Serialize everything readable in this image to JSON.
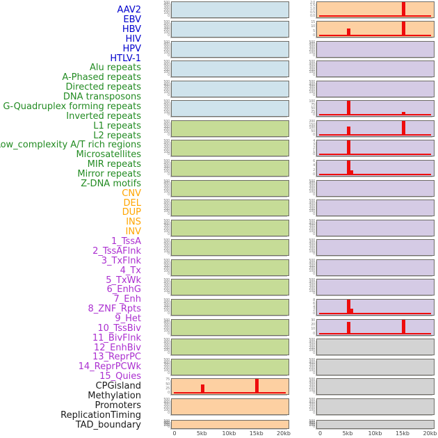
{
  "colors": {
    "background": "#ffffff",
    "spike_red": "#ee0c0c",
    "panel_border": "#6e6c66",
    "y_tick_text": "#818181",
    "x_tick_text": "#3f3f3f",
    "label": {
      "virus": "#0000cd",
      "repeat": "#228b22",
      "sv": "#ffa500",
      "chromhmm": "#ab2fd0",
      "other": "#1a1a1a"
    },
    "fill": {
      "virus": "#cfe3ec",
      "repeat": "#c6dc97",
      "sv": "#fdd0a2",
      "chromhmm": "#d5cbe5",
      "other": "#d3d3d3"
    }
  },
  "chart_data": {
    "type": "bar",
    "layout": "44 small-multiple density panels arranged as 2 columns x 22 rows; feature name list on the left (column-major: first 22 names = left column, last 22 = right column)",
    "x_axis": {
      "ticks": [
        "0",
        "5kb",
        "10kb",
        "15kb",
        "20kb"
      ],
      "range_kb": [
        0,
        20
      ],
      "shown_under_each_column": true
    },
    "default_y_ticks": [
      "500",
      "400",
      "300",
      "200",
      "100",
      "0"
    ],
    "panels": [
      {
        "name": "AAV2",
        "category": "virus",
        "spikes": []
      },
      {
        "name": "EBV",
        "category": "virus",
        "spikes": []
      },
      {
        "name": "HBV",
        "category": "virus",
        "spikes": []
      },
      {
        "name": "HIV",
        "category": "virus",
        "spikes": []
      },
      {
        "name": "HPV",
        "category": "virus",
        "spikes": []
      },
      {
        "name": "HTLV-1",
        "category": "virus",
        "spikes": []
      },
      {
        "name": "Alu repeats",
        "category": "repeat",
        "spikes": []
      },
      {
        "name": "A-Phased repeats",
        "category": "repeat",
        "spikes": []
      },
      {
        "name": "Directed repeats",
        "category": "repeat",
        "spikes": []
      },
      {
        "name": "DNA transposons",
        "category": "repeat",
        "spikes": []
      },
      {
        "name": "G-Quadruplex forming repeats",
        "category": "repeat",
        "spikes": []
      },
      {
        "name": "Inverted repeats",
        "category": "repeat",
        "spikes": []
      },
      {
        "name": "L1 repeats",
        "category": "repeat",
        "spikes": []
      },
      {
        "name": "L2 repeats",
        "category": "repeat",
        "spikes": []
      },
      {
        "name": "Low_complexity A/T rich regions",
        "category": "repeat",
        "spikes": []
      },
      {
        "name": "Microsatellites",
        "category": "repeat",
        "spikes": []
      },
      {
        "name": "MIR repeats",
        "category": "repeat",
        "spikes": []
      },
      {
        "name": "Mirror repeats",
        "category": "repeat",
        "spikes": []
      },
      {
        "name": "Z-DNA motifs",
        "category": "repeat",
        "spikes": []
      },
      {
        "name": "CNV",
        "category": "sv",
        "y_ticks": [
          "75",
          "50",
          "25",
          "0"
        ],
        "spikes": [
          {
            "x_kb": 5,
            "h": 0.65
          },
          {
            "x_kb": 15,
            "h": 1.0
          }
        ]
      },
      {
        "name": "DEL",
        "category": "sv",
        "spikes": []
      },
      {
        "name": "DUP",
        "category": "sv",
        "spikes": []
      },
      {
        "name": "INS",
        "category": "sv",
        "y_ticks": [
          "2.0",
          "1.5",
          "1.0",
          "0.5",
          "0.0"
        ],
        "spikes": [
          {
            "x_kb": 15,
            "h": 1.0
          }
        ]
      },
      {
        "name": "INV",
        "category": "sv",
        "y_ticks": [
          "15",
          "10",
          "5",
          "0"
        ],
        "spikes": [
          {
            "x_kb": 5,
            "h": 0.52
          },
          {
            "x_kb": 15,
            "h": 1.0
          }
        ]
      },
      {
        "name": "1_TssA",
        "category": "chromhmm",
        "spikes": []
      },
      {
        "name": "2_TssAFlnk",
        "category": "chromhmm",
        "spikes": []
      },
      {
        "name": "3_TxFlnk",
        "category": "chromhmm",
        "spikes": []
      },
      {
        "name": "4_Tx",
        "category": "chromhmm",
        "y_ticks": [
          "100",
          "75",
          "50",
          "25",
          "0"
        ],
        "spikes": [
          {
            "x_kb": 5,
            "h": 1.0
          },
          {
            "x_kb": 15,
            "h": 0.27
          }
        ]
      },
      {
        "name": "5_TxWk",
        "category": "chromhmm",
        "y_ticks": [
          "200",
          "150",
          "100",
          "50",
          "0"
        ],
        "spikes": [
          {
            "x_kb": 5,
            "h": 0.6
          },
          {
            "x_kb": 15,
            "h": 1.0
          }
        ]
      },
      {
        "name": "6_EnhG",
        "category": "chromhmm",
        "y_ticks": [
          "4",
          "3",
          "2",
          "1",
          "0"
        ],
        "spikes": [
          {
            "x_kb": 5,
            "h": 1.0
          }
        ]
      },
      {
        "name": "7_Enh",
        "category": "chromhmm",
        "y_ticks": [
          "6",
          "4",
          "2",
          "0"
        ],
        "spikes": [
          {
            "x_kb": 5,
            "h": 1.0
          },
          {
            "x_kb": 5.6,
            "h": 0.35
          }
        ]
      },
      {
        "name": "8_ZNF_Rpts",
        "category": "chromhmm",
        "spikes": []
      },
      {
        "name": "9_Het",
        "category": "chromhmm",
        "spikes": []
      },
      {
        "name": "10_TssBiv",
        "category": "chromhmm",
        "spikes": []
      },
      {
        "name": "11_BivFlnk",
        "category": "chromhmm",
        "spikes": []
      },
      {
        "name": "12_EnhBiv",
        "category": "chromhmm",
        "spikes": []
      },
      {
        "name": "13_ReprPC",
        "category": "chromhmm",
        "spikes": []
      },
      {
        "name": "14_ReprPCWk",
        "category": "chromhmm",
        "y_ticks": [
          "8",
          "6",
          "4",
          "2",
          "0"
        ],
        "spikes": [
          {
            "x_kb": 5,
            "h": 1.0
          },
          {
            "x_kb": 5.6,
            "h": 0.4
          }
        ]
      },
      {
        "name": "15_Quies",
        "category": "chromhmm",
        "y_ticks": [
          "30",
          "20",
          "10",
          "0"
        ],
        "spikes": [
          {
            "x_kb": 5,
            "h": 0.85
          },
          {
            "x_kb": 15,
            "h": 1.0
          }
        ]
      },
      {
        "name": "CPGisland",
        "category": "other",
        "spikes": []
      },
      {
        "name": "Methylation",
        "category": "other",
        "spikes": []
      },
      {
        "name": "Promoters",
        "category": "other",
        "spikes": []
      },
      {
        "name": "ReplicationTiming",
        "category": "other",
        "spikes": []
      },
      {
        "name": "TAD_boundary",
        "category": "other",
        "spikes": []
      }
    ]
  }
}
